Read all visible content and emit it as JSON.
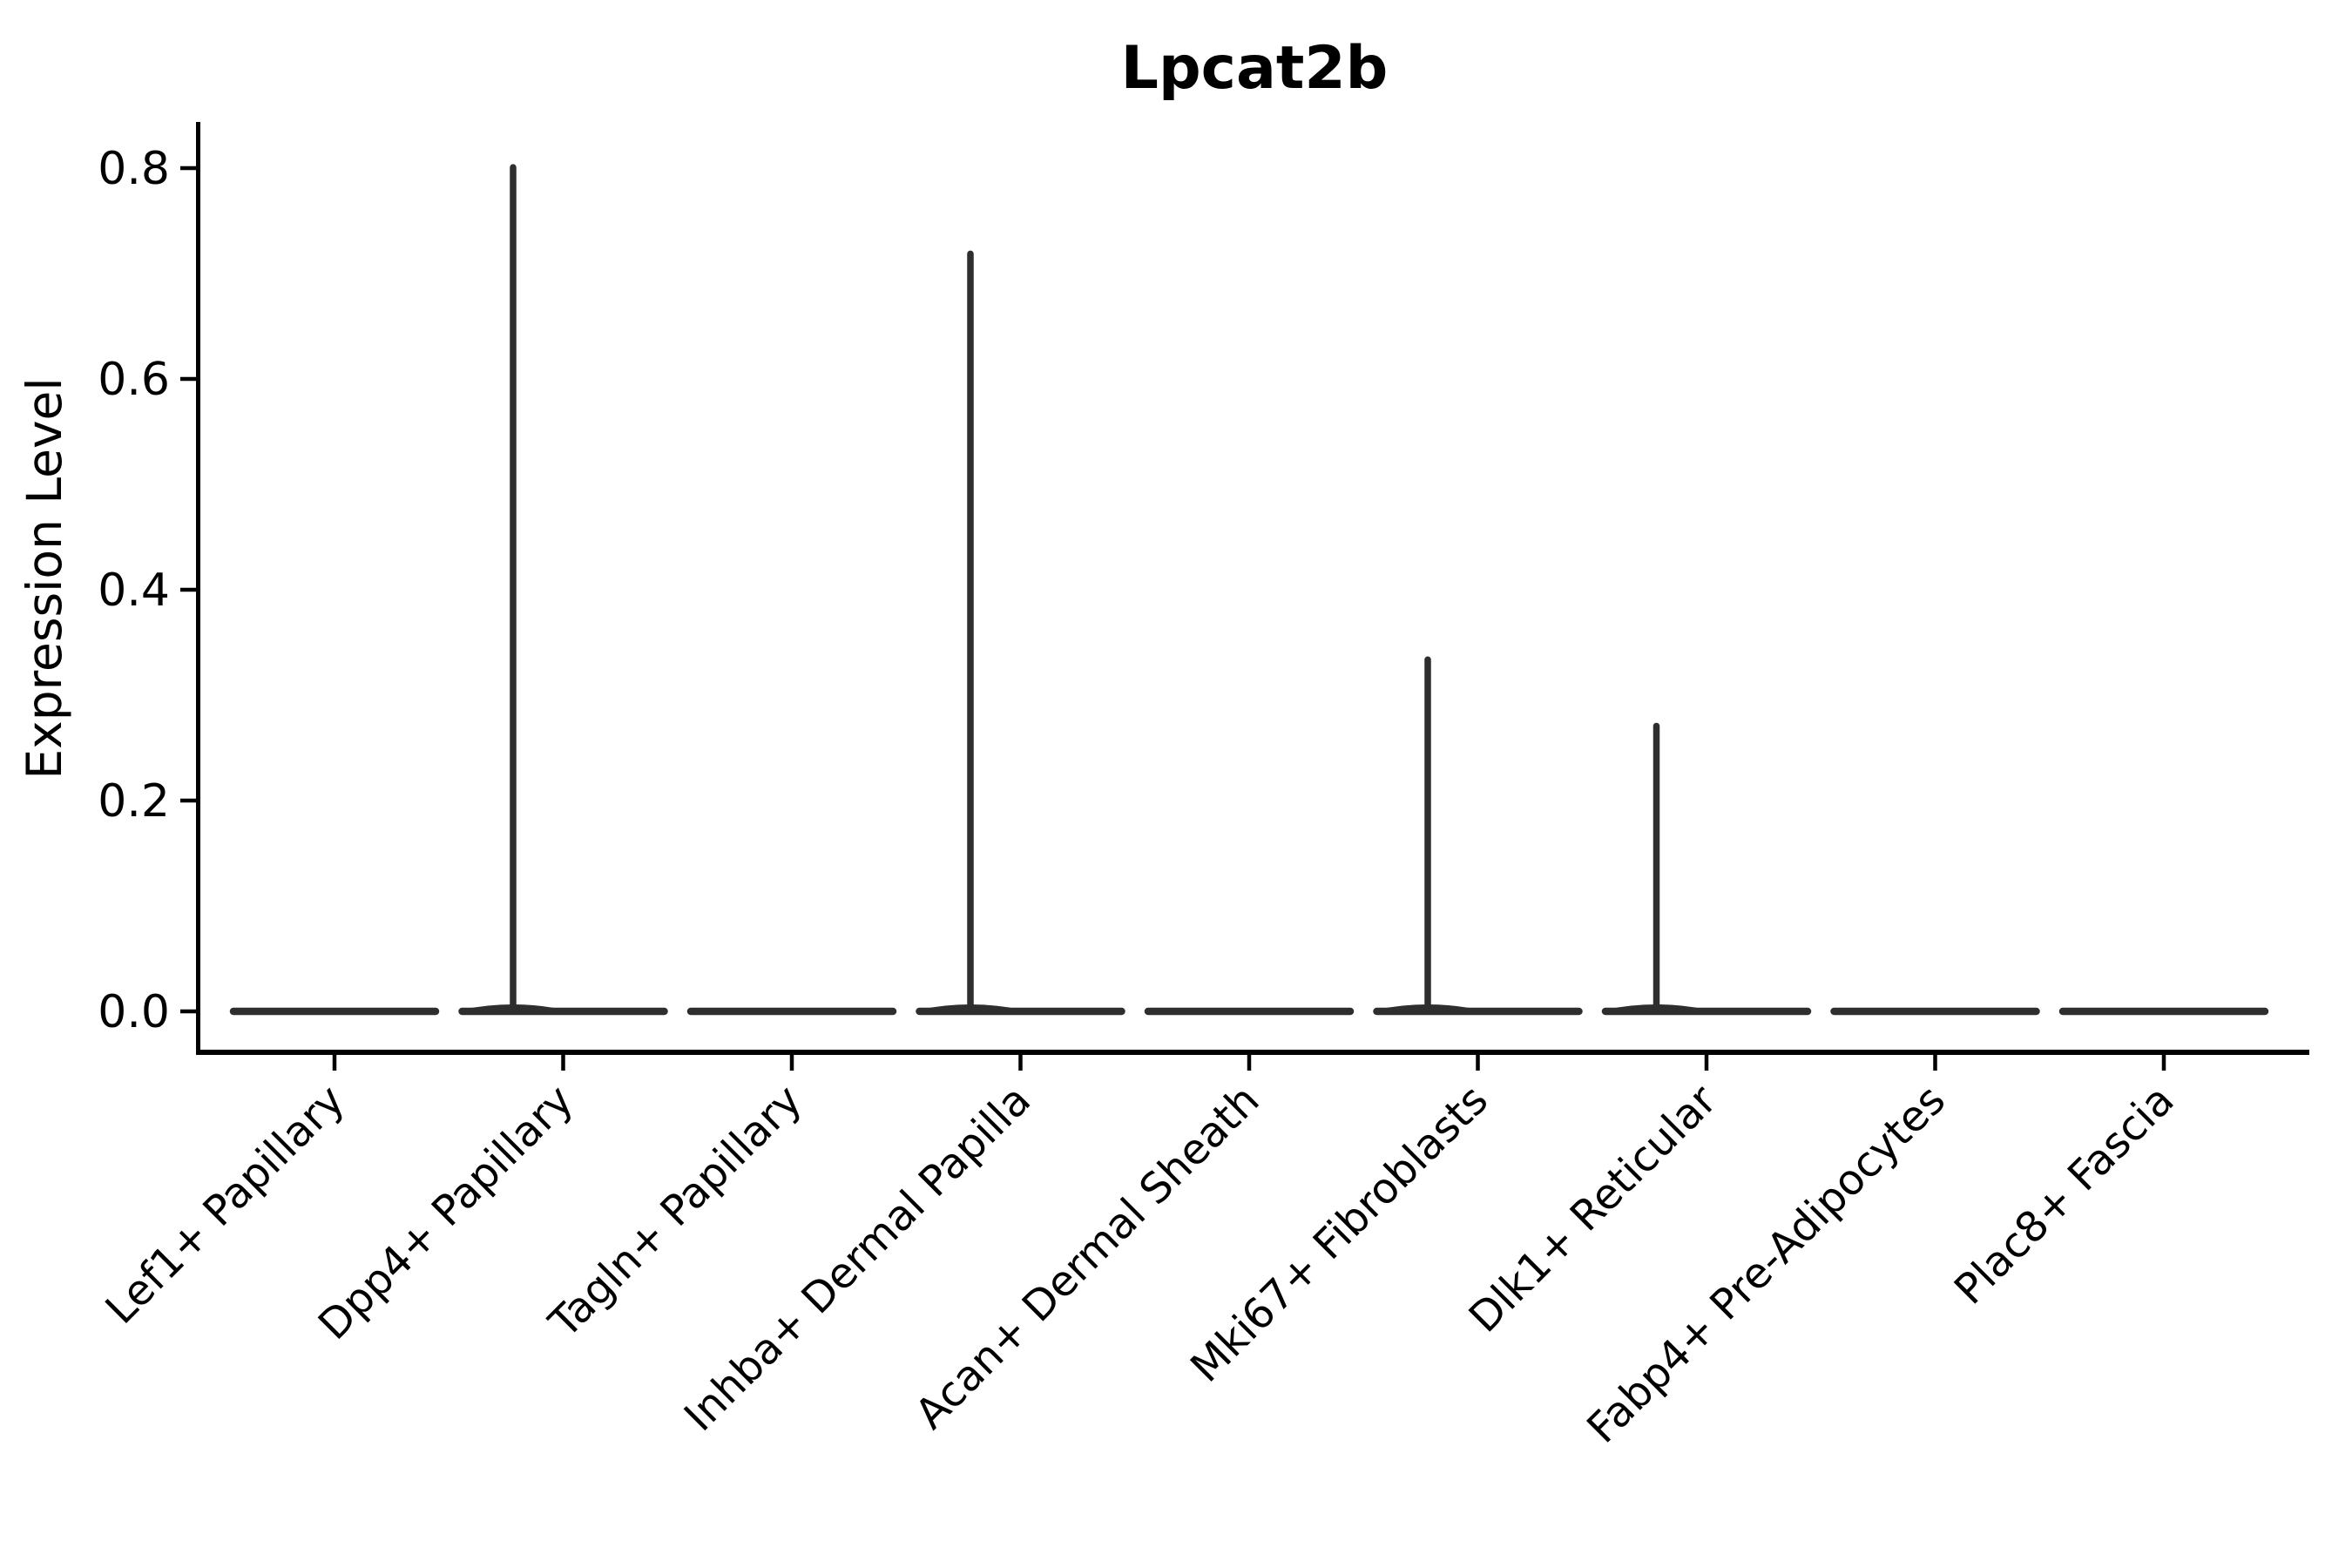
{
  "title": "Lpcat2b",
  "ylabel": "Expression Level",
  "colors": {
    "background": "#ffffff",
    "axis": "#000000",
    "text": "#000000",
    "violin": "#2e2e2e"
  },
  "chart_data": {
    "type": "violin",
    "title": "Lpcat2b",
    "xlabel": "",
    "ylabel": "Expression Level",
    "categories": [
      "Lef1+ Papillary",
      "Dpp4+ Papillary",
      "Tagln+ Papillary",
      "Inhba+ Dermal Papilla",
      "Acan+ Dermal Sheath",
      "Mki67+ Fibroblasts",
      "Dlk1+ Reticular",
      "Fabp4+ Pre-Adipocytes",
      "Plac8+ Fascia"
    ],
    "series": [
      {
        "name": "max expression (spike top)",
        "values": [
          0,
          0.804,
          0,
          0.722,
          0,
          0.337,
          0.274,
          0,
          0
        ]
      },
      {
        "name": "bulk expression (flat violin body)",
        "values": [
          0,
          0,
          0,
          0,
          0,
          0,
          0,
          0,
          0
        ]
      }
    ],
    "yticks": [
      0.0,
      0.2,
      0.4,
      0.6,
      0.8
    ],
    "ytick_labels": [
      "0.0",
      "0.2",
      "0.4",
      "0.6",
      "0.8"
    ],
    "ylim": [
      -0.04,
      0.845
    ],
    "grid": false,
    "legend_position": "none",
    "xtick_rotation_deg": 45
  }
}
